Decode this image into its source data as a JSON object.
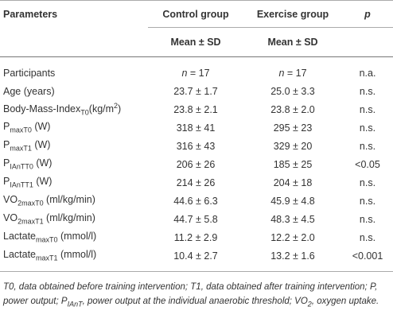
{
  "table": {
    "header": {
      "row1": [
        "Parameters",
        "Control group",
        "Exercise group",
        "p"
      ],
      "row2": [
        "Mean ± SD",
        "Mean ± SD"
      ]
    },
    "rows": [
      [
        [
          "Participants"
        ],
        [
          {
            "i": "n"
          },
          " = 17"
        ],
        [
          {
            "i": "n"
          },
          " = 17"
        ],
        [
          "n.a."
        ]
      ],
      [
        [
          "Age (years)"
        ],
        [
          "23.7 ± 1.7"
        ],
        [
          "25.0 ± 3.3"
        ],
        [
          "n.s."
        ]
      ],
      [
        [
          "Body-Mass-Index",
          {
            "sub": "T0"
          },
          "(kg/m",
          {
            "sup": "2"
          },
          ")"
        ],
        [
          "23.8 ± 2.1"
        ],
        [
          "23.8 ± 2.0"
        ],
        [
          "n.s."
        ]
      ],
      [
        [
          "P",
          {
            "sub": "maxT0"
          },
          " (W)"
        ],
        [
          "318 ± 41"
        ],
        [
          "295 ± 23"
        ],
        [
          "n.s."
        ]
      ],
      [
        [
          "P",
          {
            "sub": "maxT1"
          },
          " (W)"
        ],
        [
          "316 ± 43"
        ],
        [
          "329 ± 20"
        ],
        [
          "n.s."
        ]
      ],
      [
        [
          "P",
          {
            "sub": "IAnTT0"
          },
          " (W)"
        ],
        [
          "206 ± 26"
        ],
        [
          "185 ± 25"
        ],
        [
          "<0.05"
        ]
      ],
      [
        [
          "P",
          {
            "sub": "IAnTT1"
          },
          " (W)"
        ],
        [
          "214 ± 26"
        ],
        [
          "204 ± 18"
        ],
        [
          "n.s."
        ]
      ],
      [
        [
          "VO",
          {
            "sub": "2maxT0"
          },
          " (ml/kg/min)"
        ],
        [
          "44.6 ± 6.3"
        ],
        [
          "45.9 ± 4.8"
        ],
        [
          "n.s."
        ]
      ],
      [
        [
          "VO",
          {
            "sub": "2maxT1"
          },
          " (ml/kg/min)"
        ],
        [
          "44.7 ± 5.8"
        ],
        [
          "48.3 ± 4.5"
        ],
        [
          "n.s."
        ]
      ],
      [
        [
          "Lactate",
          {
            "sub": "maxT0"
          },
          " (mmol/l)"
        ],
        [
          "11.2 ± 2.9"
        ],
        [
          "12.2 ± 2.0"
        ],
        [
          "n.s."
        ]
      ],
      [
        [
          "Lactate",
          {
            "sub": "maxT1"
          },
          " (mmol/l)"
        ],
        [
          "10.4 ± 2.7"
        ],
        [
          "13.2 ± 1.6"
        ],
        [
          "<0.001"
        ]
      ]
    ],
    "footnote": [
      "T0, data obtained before training intervention; T1, data obtained after training intervention; P, power output; P",
      {
        "sub": "IAnT"
      },
      ", power output at the individual anaerobic threshold; VO",
      {
        "sub": "2"
      },
      ", oxygen uptake."
    ]
  }
}
